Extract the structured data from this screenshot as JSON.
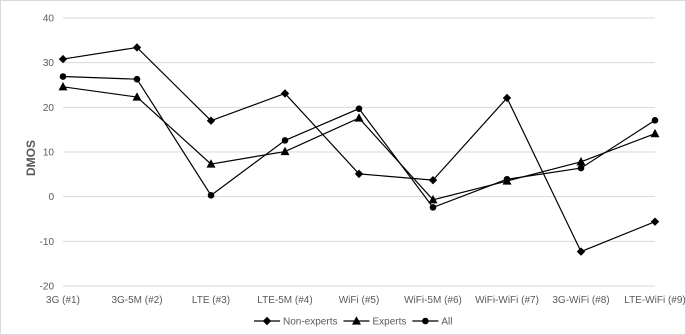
{
  "chart_data": {
    "type": "line",
    "title": "",
    "xlabel": "",
    "ylabel": "DMOS",
    "ylim": [
      -20,
      40
    ],
    "yticks": [
      -20,
      -10,
      0,
      10,
      20,
      30,
      40
    ],
    "grid": true,
    "legend_position": "bottom",
    "categories": [
      "3G (#1)",
      "3G-5M (#2)",
      "LTE (#3)",
      "LTE-5M (#4)",
      "WiFi (#5)",
      "WiFi-5M (#6)",
      "WiFi-WiFi (#7)",
      "3G-WiFi (#8)",
      "LTE-WiFi (#9)"
    ],
    "series": [
      {
        "name": "Non-experts",
        "marker": "diamond",
        "values": [
          30.8,
          33.4,
          17.0,
          23.1,
          5.1,
          3.7,
          22.1,
          -12.3,
          -5.6
        ]
      },
      {
        "name": "Experts",
        "marker": "triangle",
        "values": [
          24.6,
          22.3,
          7.3,
          10.1,
          17.6,
          -0.7,
          3.5,
          7.8,
          14.1
        ]
      },
      {
        "name": "All",
        "marker": "circle",
        "values": [
          26.9,
          26.3,
          0.3,
          12.6,
          19.7,
          -2.4,
          3.9,
          6.4,
          17.1
        ]
      }
    ],
    "colors": {
      "line": "#000000",
      "grid": "#d9d9d9",
      "text": "#595959"
    }
  }
}
